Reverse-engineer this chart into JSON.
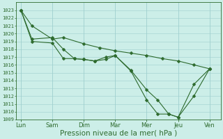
{
  "xlabel": "Pression niveau de la mer( hPa )",
  "ylim_low": 1009,
  "ylim_high": 1024,
  "x_labels": [
    "Lun",
    "Sam",
    "Dim",
    "Mar",
    "Mer",
    "Jeu",
    "Ven"
  ],
  "x_positions": [
    0,
    1,
    2,
    3,
    4,
    5,
    6
  ],
  "line_color": "#2d6a2d",
  "bg_color": "#cceee8",
  "grid_color": "#9ecece",
  "marker_size": 2.5,
  "line_width": 0.8,
  "y_label_fontsize": 5.0,
  "x_label_fontsize": 6.0,
  "xlabel_fontsize": 7.5,
  "l1x": [
    0,
    0.35,
    1.0,
    1.35,
    2.0,
    2.5,
    3.0,
    3.5,
    4.0,
    4.5,
    5.0,
    5.5,
    6.0
  ],
  "l1y": [
    1023,
    1021,
    1019.3,
    1019.5,
    1018.7,
    1018.2,
    1017.8,
    1017.5,
    1017.2,
    1016.8,
    1016.5,
    1016.0,
    1015.5
  ],
  "l2x": [
    0,
    0.35,
    1.0,
    1.35,
    1.7,
    2.0,
    2.35,
    2.7,
    3.0,
    3.5,
    4.0,
    4.35,
    4.7,
    5.0,
    5.5,
    6.0
  ],
  "l2y": [
    1023,
    1019.3,
    1019.5,
    1018.0,
    1016.8,
    1016.7,
    1016.5,
    1017.0,
    1017.2,
    1015.3,
    1012.8,
    1011.5,
    1009.7,
    1009.3,
    1012.0,
    1015.5
  ],
  "l3x": [
    0,
    0.35,
    1.0,
    1.35,
    1.7,
    2.0,
    2.35,
    2.7,
    3.0,
    3.5,
    4.0,
    4.35,
    4.7,
    5.0,
    5.5,
    6.0
  ],
  "l3y": [
    1023,
    1019.0,
    1018.8,
    1016.8,
    1016.8,
    1016.7,
    1016.5,
    1016.7,
    1017.2,
    1015.2,
    1011.5,
    1009.7,
    1009.7,
    1009.3,
    1013.5,
    1015.5
  ]
}
